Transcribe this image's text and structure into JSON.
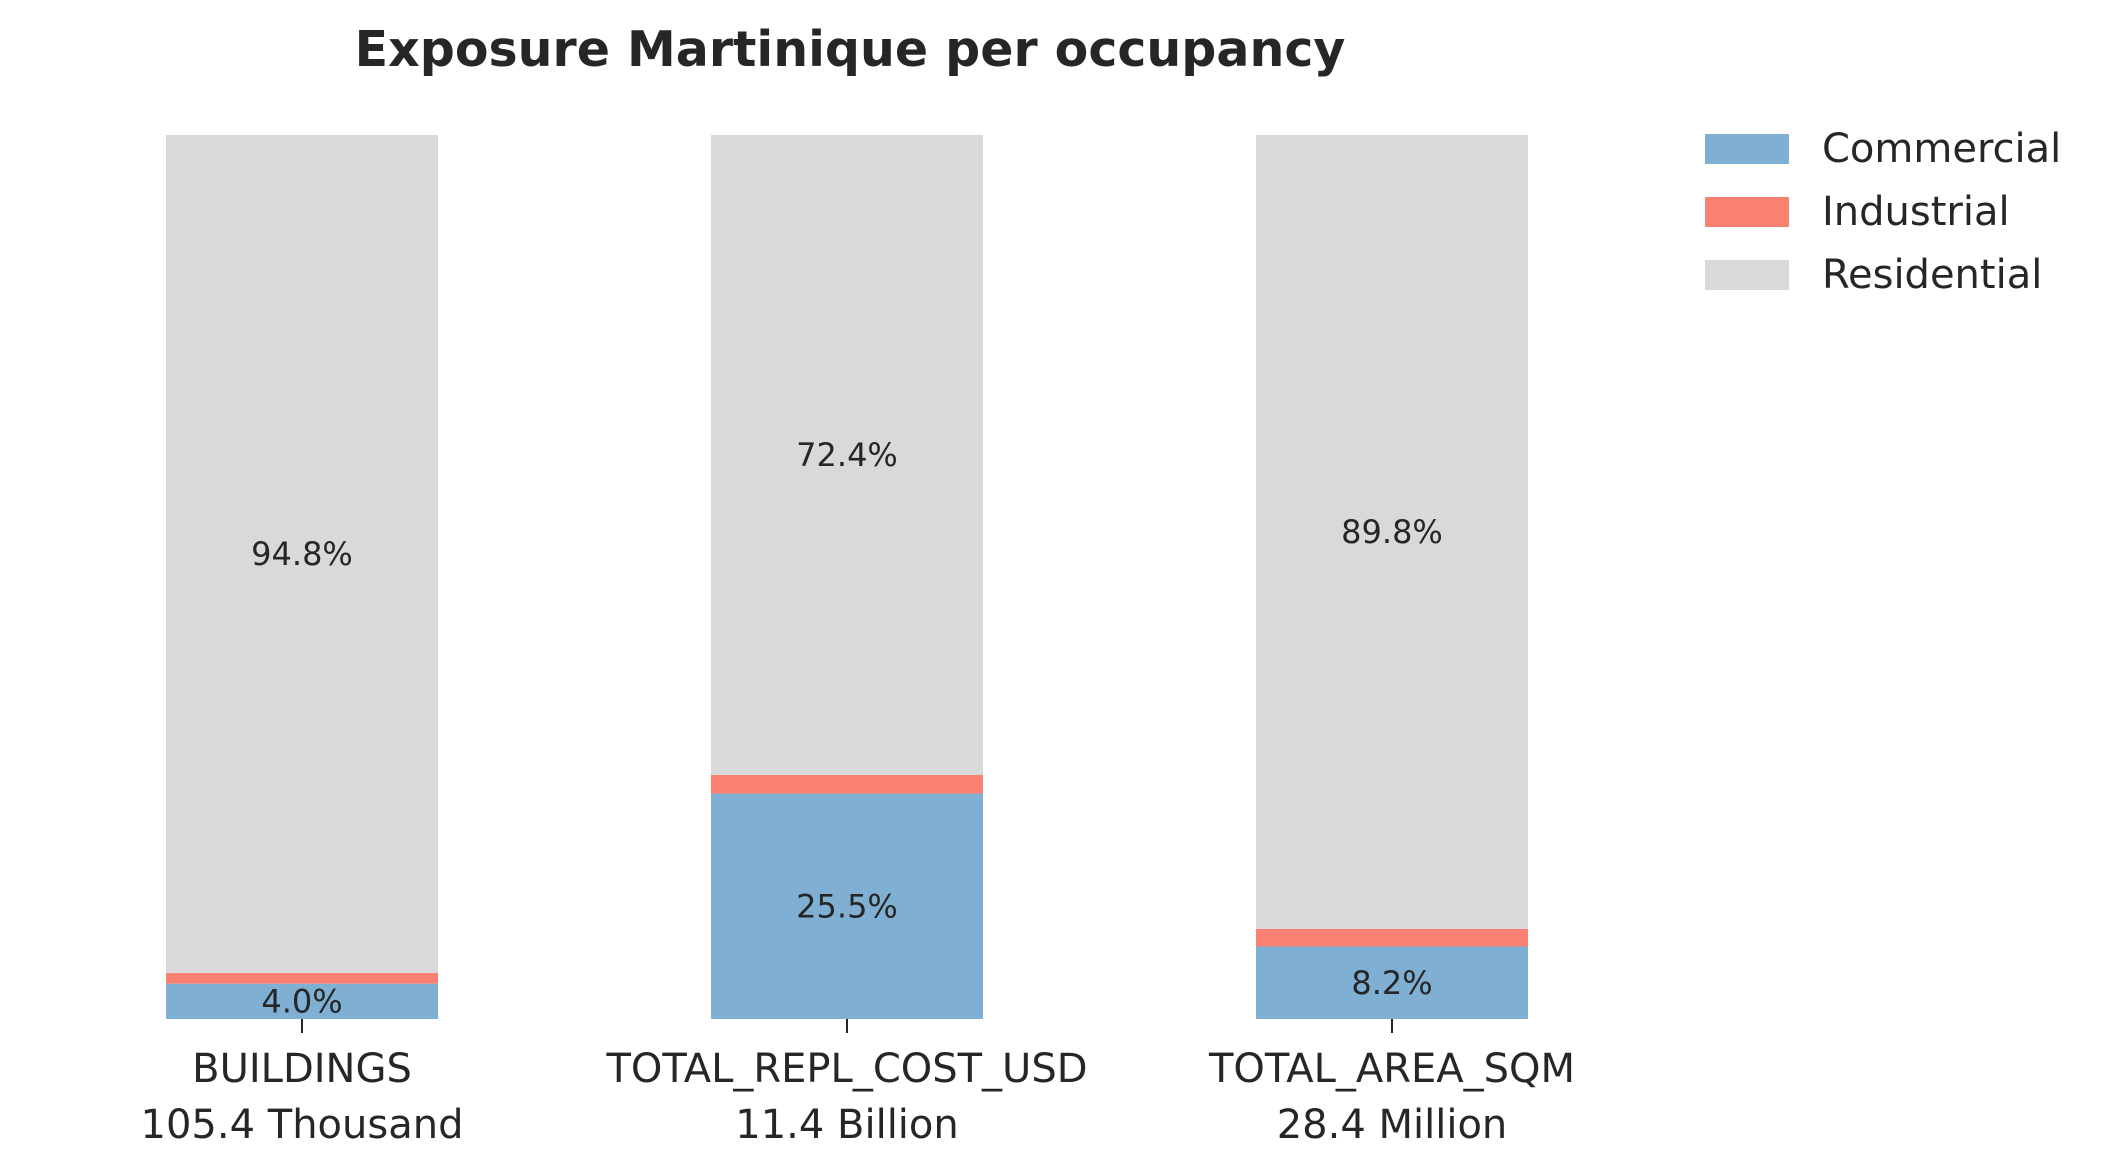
{
  "chart_data": {
    "type": "bar",
    "stacked": true,
    "title": "Exposure Martinique per occupancy",
    "xlabel": "",
    "ylabel": "",
    "ylim": [
      0,
      100
    ],
    "grid": false,
    "legend_position": "top-right",
    "categories": [
      "BUILDINGS",
      "TOTAL_REPL_COST_USD",
      "TOTAL_AREA_SQM"
    ],
    "category_totals": [
      "105.4 Thousand",
      "11.4 Billion",
      "28.4 Million"
    ],
    "series": [
      {
        "name": "Commercial",
        "color": "#7fb0d4",
        "values": [
          4.0,
          25.5,
          8.2
        ]
      },
      {
        "name": "Industrial",
        "color": "#fa8072",
        "values": [
          1.2,
          2.1,
          2.0
        ]
      },
      {
        "name": "Residential",
        "color": "#d9d9d9",
        "values": [
          94.8,
          72.4,
          89.8
        ]
      }
    ],
    "data_labels": [
      [
        "4.0%",
        "25.5%",
        "8.2%"
      ],
      [
        "",
        "",
        ""
      ],
      [
        "94.8%",
        "72.4%",
        "89.8%"
      ]
    ]
  }
}
